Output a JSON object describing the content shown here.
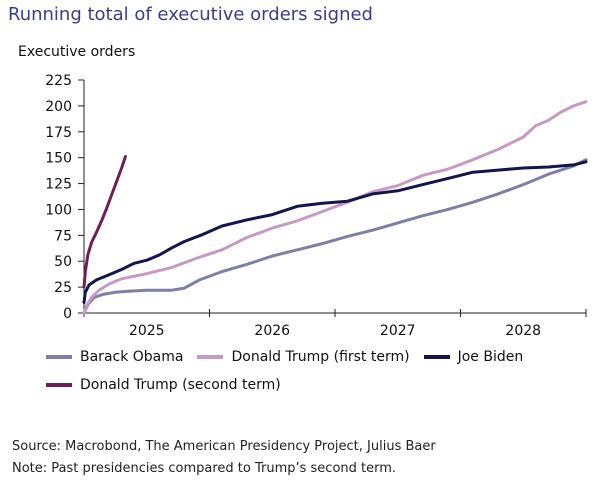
{
  "title": "Running total of executive orders signed",
  "chart_data": {
    "type": "line",
    "ylabel": "Executive orders",
    "xlabel": "",
    "ylim": [
      0,
      225
    ],
    "yticks": [
      0,
      25,
      50,
      75,
      100,
      125,
      150,
      175,
      200,
      225
    ],
    "xlim": [
      2024.5,
      2028.5
    ],
    "xtick_labels": [
      "2025",
      "2026",
      "2027",
      "2028"
    ],
    "xtick_label_positions": [
      2025,
      2026,
      2027,
      2028
    ],
    "x_boundaries": [
      2024.5,
      2025.5,
      2026.5,
      2027.5,
      2028.5
    ],
    "grid": false,
    "legend": "bottom",
    "series": [
      {
        "name": "Barack Obama",
        "color": "#7d7fa6",
        "x": [
          2024.5,
          2024.53,
          2024.58,
          2024.65,
          2024.75,
          2024.85,
          2025.0,
          2025.2,
          2025.3,
          2025.42,
          2025.6,
          2025.8,
          2026.0,
          2026.2,
          2026.4,
          2026.6,
          2026.8,
          2027.0,
          2027.2,
          2027.4,
          2027.6,
          2027.8,
          2028.0,
          2028.2,
          2028.4,
          2028.5
        ],
        "values": [
          0,
          8,
          15,
          18,
          20,
          21,
          22,
          22,
          24,
          32,
          40,
          47,
          55,
          61,
          67,
          74,
          80,
          87,
          94,
          100,
          107,
          115,
          124,
          134,
          142,
          148
        ]
      },
      {
        "name": "Donald Trump (first term)",
        "color": "#c59bc4",
        "x": [
          2024.5,
          2024.52,
          2024.56,
          2024.62,
          2024.7,
          2024.8,
          2025.0,
          2025.2,
          2025.4,
          2025.6,
          2025.8,
          2026.0,
          2026.2,
          2026.4,
          2026.6,
          2026.8,
          2027.0,
          2027.2,
          2027.4,
          2027.6,
          2027.8,
          2028.0,
          2028.1,
          2028.2,
          2028.3,
          2028.4,
          2028.5
        ],
        "values": [
          0,
          7,
          15,
          22,
          28,
          33,
          38,
          44,
          53,
          61,
          73,
          82,
          89,
          98,
          107,
          117,
          123,
          133,
          139,
          148,
          158,
          170,
          181,
          186,
          194,
          200,
          204
        ]
      },
      {
        "name": "Joe Biden",
        "color": "#14154a",
        "x": [
          2024.5,
          2024.51,
          2024.54,
          2024.6,
          2024.7,
          2024.8,
          2024.9,
          2025.0,
          2025.1,
          2025.2,
          2025.3,
          2025.45,
          2025.6,
          2025.8,
          2026.0,
          2026.2,
          2026.4,
          2026.6,
          2026.8,
          2027.0,
          2027.2,
          2027.4,
          2027.6,
          2027.8,
          2028.0,
          2028.2,
          2028.4,
          2028.5
        ],
        "values": [
          10,
          20,
          27,
          32,
          37,
          42,
          48,
          51,
          56,
          63,
          69,
          76,
          84,
          90,
          95,
          103,
          106,
          108,
          115,
          118,
          124,
          130,
          136,
          138,
          140,
          141,
          143,
          146
        ]
      },
      {
        "name": "Donald Trump (second term)",
        "color": "#6c2156",
        "x": [
          2024.5,
          2024.51,
          2024.53,
          2024.56,
          2024.6,
          2024.64,
          2024.68,
          2024.72,
          2024.76,
          2024.8,
          2024.83
        ],
        "values": [
          25,
          40,
          56,
          68,
          78,
          89,
          101,
          114,
          127,
          140,
          151
        ]
      }
    ]
  },
  "legend_rows": [
    [
      "Barack Obama",
      "Donald Trump (first term)",
      "Joe Biden"
    ],
    [
      "Donald Trump (second term)"
    ]
  ],
  "footer": {
    "source": "Source: Macrobond, The American Presidency Project, Julius Baer",
    "note": "Note: Past presidencies compared to Trump’s second term."
  }
}
